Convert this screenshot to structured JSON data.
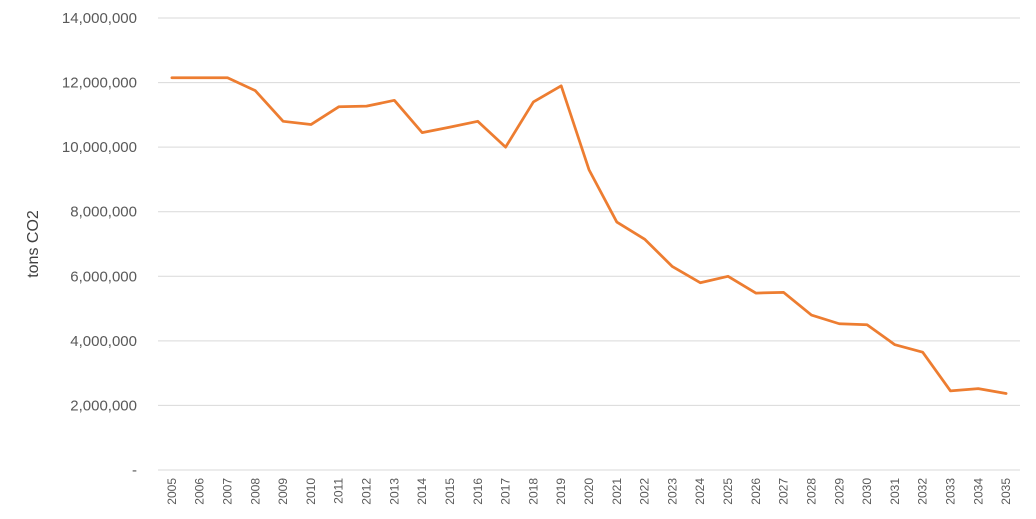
{
  "chart_data": {
    "type": "line",
    "title": "",
    "xlabel": "",
    "ylabel": "tons CO2",
    "ylim": [
      0,
      14000000
    ],
    "grid": true,
    "y_ticks": [
      {
        "value": 0,
        "label": "-"
      },
      {
        "value": 2000000,
        "label": "2,000,000"
      },
      {
        "value": 4000000,
        "label": "4,000,000"
      },
      {
        "value": 6000000,
        "label": "6,000,000"
      },
      {
        "value": 8000000,
        "label": "8,000,000"
      },
      {
        "value": 10000000,
        "label": "10,000,000"
      },
      {
        "value": 12000000,
        "label": "12,000,000"
      },
      {
        "value": 14000000,
        "label": "14,000,000"
      }
    ],
    "categories": [
      "2005",
      "2006",
      "2007",
      "2008",
      "2009",
      "2010",
      "2011",
      "2012",
      "2013",
      "2014",
      "2015",
      "2016",
      "2017",
      "2018",
      "2019",
      "2020",
      "2021",
      "2022",
      "2023",
      "2024",
      "2025",
      "2026",
      "2027",
      "2028",
      "2029",
      "2030",
      "2031",
      "2032",
      "2033",
      "2034",
      "2035"
    ],
    "series": [
      {
        "color": "#ed7d31",
        "values": [
          12150000,
          12150000,
          12150000,
          11750000,
          10800000,
          10700000,
          11250000,
          11270000,
          11450000,
          10450000,
          10620000,
          10800000,
          10000000,
          11400000,
          11900000,
          9300000,
          7680000,
          7150000,
          6300000,
          5800000,
          6000000,
          5480000,
          5500000,
          4800000,
          4530000,
          4500000,
          3880000,
          3650000,
          2450000,
          2520000,
          2370000
        ]
      }
    ]
  }
}
